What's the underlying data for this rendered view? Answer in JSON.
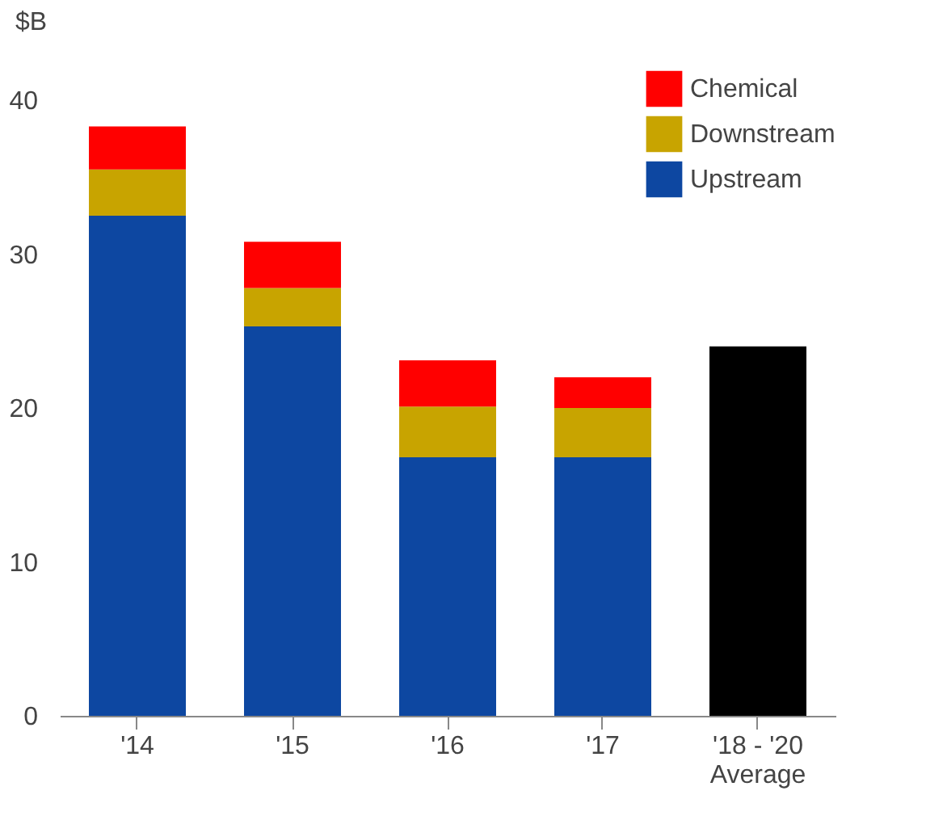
{
  "chart_data": {
    "type": "bar",
    "stacked": true,
    "ylabel": "$B",
    "categories": [
      "'14",
      "'15",
      "'16",
      "'17",
      "'18 - '20\nAverage"
    ],
    "series": [
      {
        "name": "Upstream",
        "color": "#0d47a1",
        "values": [
          32.5,
          25.3,
          16.8,
          16.8,
          null
        ]
      },
      {
        "name": "Downstream",
        "color": "#c8a400",
        "values": [
          3.0,
          2.5,
          3.3,
          3.2,
          null
        ]
      },
      {
        "name": "Chemical",
        "color": "#ff0000",
        "values": [
          2.8,
          3.0,
          3.0,
          2.0,
          null
        ]
      },
      {
        "color": "#000000",
        "values": [
          null,
          null,
          null,
          null,
          24
        ]
      }
    ],
    "ylim": [
      0,
      42
    ],
    "yticks": [
      0,
      10,
      20,
      30,
      40
    ],
    "grid": false,
    "legend": "top right"
  }
}
